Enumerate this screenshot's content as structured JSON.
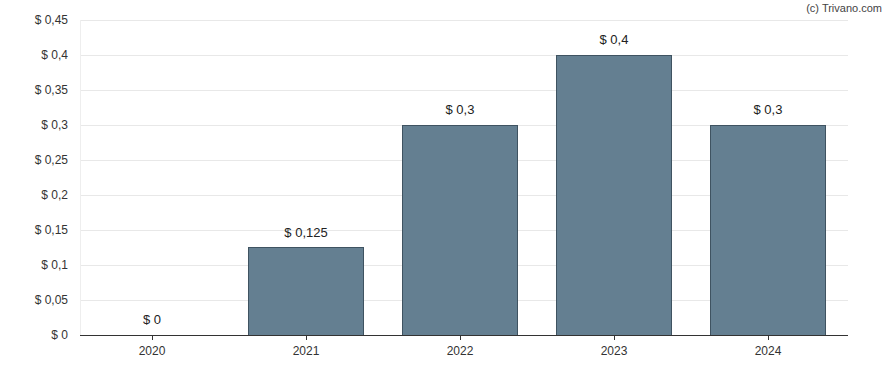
{
  "chart_data": {
    "type": "bar",
    "source": "(c) Trivano.com",
    "categories": [
      "2020",
      "2021",
      "2022",
      "2023",
      "2024"
    ],
    "values": [
      0,
      0.125,
      0.3,
      0.4,
      0.3
    ],
    "value_labels": [
      "$ 0",
      "$ 0,125",
      "$ 0,3",
      "$ 0,4",
      "$ 0,3"
    ],
    "data_labels": true,
    "color": "#647f91",
    "ylim": [
      0,
      0.45
    ],
    "yticks": [
      {
        "value": 0,
        "label": "$ 0"
      },
      {
        "value": 0.05,
        "label": "$ 0,05"
      },
      {
        "value": 0.1,
        "label": "$ 0,1"
      },
      {
        "value": 0.15,
        "label": "$ 0,15"
      },
      {
        "value": 0.2,
        "label": "$ 0,2"
      },
      {
        "value": 0.25,
        "label": "$ 0,25"
      },
      {
        "value": 0.3,
        "label": "$ 0,3"
      },
      {
        "value": 0.35,
        "label": "$ 0,35"
      },
      {
        "value": 0.4,
        "label": "$ 0,4"
      },
      {
        "value": 0.45,
        "label": "$ 0,45"
      }
    ],
    "grid": true
  }
}
